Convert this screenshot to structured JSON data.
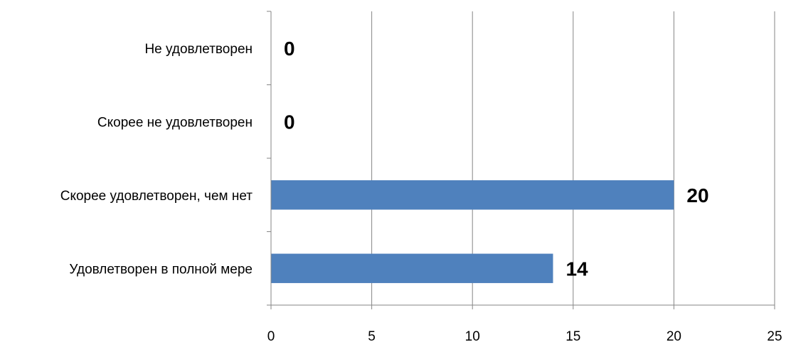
{
  "chart_data": {
    "type": "bar",
    "orientation": "horizontal",
    "categories": [
      "Не удовлетворен",
      "Скорее не удовлетворен",
      "Скорее удовлетворен, чем нет",
      "Удовлетворен в полной мере"
    ],
    "values": [
      0,
      0,
      20,
      14
    ],
    "data_labels": [
      "0",
      "0",
      "20",
      "14"
    ],
    "xlim": [
      0,
      25
    ],
    "xticks": [
      "0",
      "5",
      "10",
      "15",
      "20",
      "25"
    ],
    "xtick_values": [
      0,
      5,
      10,
      15,
      20,
      25
    ],
    "grid": true,
    "legend": "none",
    "title": "",
    "xlabel": "",
    "ylabel": "",
    "bar_color": "#4F81BD",
    "grid_color": "#868686"
  }
}
